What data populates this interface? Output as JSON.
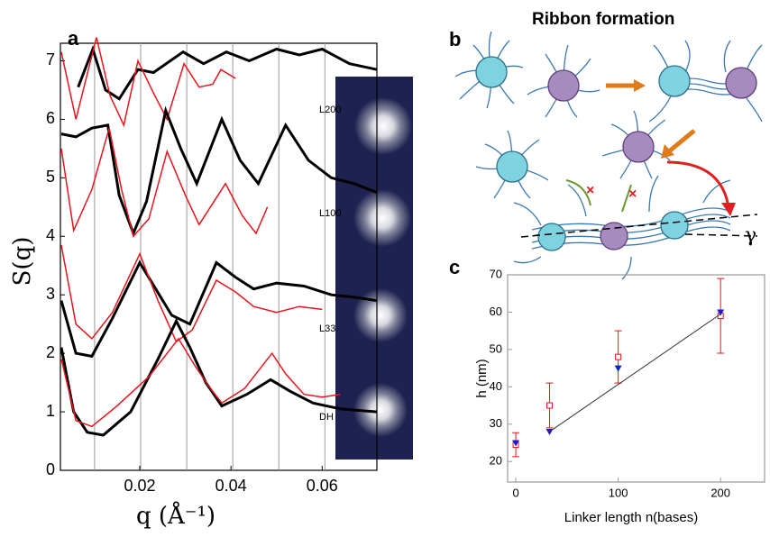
{
  "chart_data": [
    {
      "type": "line",
      "panel": "a",
      "ylabel": "S(q)",
      "xlabel": "q  (Å⁻¹)",
      "xlim": [
        0.0026,
        0.072
      ],
      "ylim": [
        0,
        7.3
      ],
      "xticks": [
        0.02,
        0.04,
        0.06
      ],
      "yticks": [
        0,
        1,
        2,
        3,
        4,
        5,
        6,
        7
      ],
      "vlines": [
        0.0101,
        0.0202,
        0.0303,
        0.0404,
        0.0505,
        0.0606
      ],
      "series": [
        {
          "name": "L200",
          "color": "#000000",
          "x": [
            0.0065,
            0.0097,
            0.0125,
            0.0155,
            0.0196,
            0.023,
            0.0295,
            0.034,
            0.039,
            0.044,
            0.05,
            0.055,
            0.06,
            0.066,
            0.072
          ],
          "values": [
            6.55,
            7.2,
            6.5,
            6.35,
            6.85,
            6.8,
            7.15,
            6.95,
            7.15,
            7.0,
            7.2,
            7.1,
            7.2,
            6.95,
            6.85
          ]
        },
        {
          "color": "#e8141b",
          "x": [
            0.0028,
            0.006,
            0.0105,
            0.0135,
            0.0165,
            0.0196,
            0.023,
            0.026,
            0.0297,
            0.033,
            0.036,
            0.0378,
            0.041
          ],
          "values": [
            7.15,
            6.0,
            7.4,
            6.4,
            5.9,
            7.0,
            6.45,
            6.0,
            6.95,
            6.55,
            6.6,
            6.85,
            6.7
          ]
        },
        {
          "name": "L100",
          "color": "#000000",
          "x": [
            0.0028,
            0.006,
            0.0095,
            0.013,
            0.0155,
            0.0186,
            0.0215,
            0.0257,
            0.029,
            0.0325,
            0.038,
            0.042,
            0.046,
            0.052,
            0.057,
            0.062,
            0.067,
            0.072
          ],
          "values": [
            5.75,
            5.7,
            5.85,
            5.9,
            4.7,
            4.05,
            4.6,
            6.15,
            5.5,
            4.9,
            6.0,
            5.3,
            4.9,
            5.9,
            5.3,
            5.0,
            4.9,
            4.75
          ]
        },
        {
          "color": "#e8141b",
          "x": [
            0.0028,
            0.0055,
            0.0095,
            0.0133,
            0.016,
            0.0186,
            0.022,
            0.026,
            0.03,
            0.033,
            0.0388,
            0.0425,
            0.0455,
            0.048
          ],
          "values": [
            5.5,
            4.1,
            4.8,
            5.85,
            4.8,
            4.0,
            4.3,
            5.45,
            4.7,
            4.2,
            4.9,
            4.35,
            4.05,
            4.5
          ]
        },
        {
          "name": "L33",
          "color": "#000000",
          "x": [
            0.0028,
            0.006,
            0.0095,
            0.014,
            0.02,
            0.0235,
            0.027,
            0.031,
            0.0368,
            0.041,
            0.045,
            0.05,
            0.056,
            0.062,
            0.068,
            0.072
          ],
          "values": [
            2.9,
            2.0,
            1.95,
            2.6,
            3.55,
            3.1,
            2.65,
            2.5,
            3.55,
            3.3,
            3.1,
            3.2,
            3.15,
            3.0,
            2.95,
            2.9
          ]
        },
        {
          "color": "#e8141b",
          "x": [
            0.0028,
            0.006,
            0.0095,
            0.014,
            0.02,
            0.024,
            0.028,
            0.0315,
            0.0368,
            0.041,
            0.045,
            0.05,
            0.055,
            0.06
          ],
          "values": [
            3.85,
            2.5,
            2.25,
            2.7,
            3.7,
            2.9,
            2.2,
            2.4,
            3.25,
            3.05,
            2.8,
            2.7,
            2.8,
            2.75
          ]
        },
        {
          "name": "DH",
          "color": "#000000",
          "x": [
            0.0028,
            0.0055,
            0.0085,
            0.012,
            0.018,
            0.024,
            0.028,
            0.031,
            0.0345,
            0.038,
            0.0435,
            0.0487,
            0.053,
            0.058,
            0.064,
            0.072
          ],
          "values": [
            2.1,
            1.0,
            0.65,
            0.6,
            1.0,
            1.9,
            2.55,
            2.1,
            1.5,
            1.1,
            1.3,
            1.55,
            1.35,
            1.15,
            1.05,
            1.0
          ]
        },
        {
          "color": "#e8141b",
          "x": [
            0.0028,
            0.006,
            0.0095,
            0.015,
            0.022,
            0.0285,
            0.032,
            0.035,
            0.038,
            0.043,
            0.049,
            0.052,
            0.056,
            0.06,
            0.064
          ],
          "values": [
            1.9,
            0.85,
            0.75,
            1.1,
            1.6,
            2.25,
            1.8,
            1.45,
            1.15,
            1.4,
            2.0,
            1.65,
            1.3,
            1.25,
            1.3
          ]
        }
      ]
    },
    {
      "type": "scatter",
      "panel": "c",
      "ylabel": "h (nm)",
      "xlabel": "Linker length n(bases)",
      "xlim": [
        -8,
        243
      ],
      "ylim": [
        14.5,
        70
      ],
      "xticks": [
        0,
        100,
        200
      ],
      "yticks": [
        20,
        30,
        40,
        50,
        60,
        70
      ],
      "series": [
        {
          "color": "#e8141b",
          "marker": "square",
          "x": [
            0,
            33,
            100,
            200
          ],
          "values": [
            24.5,
            35,
            48,
            59
          ],
          "errors": [
            3.2,
            6,
            7,
            10
          ]
        },
        {
          "color": "#1a1ad0",
          "marker": "triangle",
          "x": [
            0,
            33,
            100,
            200
          ],
          "values": [
            25,
            28,
            45,
            60
          ]
        },
        {
          "color": "#333333",
          "marker": "none",
          "x": [
            33,
            200
          ],
          "values": [
            28,
            59.5
          ]
        }
      ]
    }
  ],
  "diagram": {
    "panel": "b",
    "title": "Ribbon formation",
    "angle_label": "γ"
  }
}
